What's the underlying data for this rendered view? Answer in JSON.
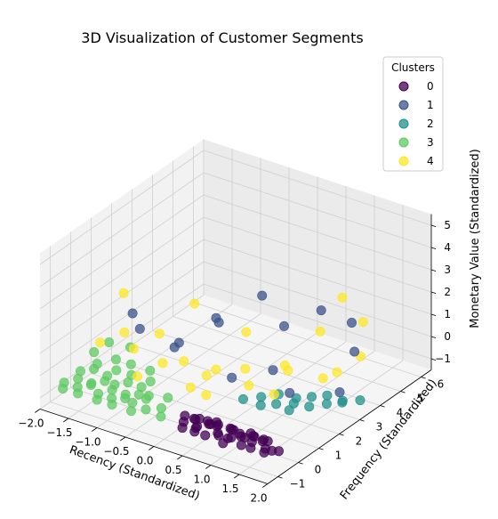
{
  "chart_data": {
    "type": "scatter",
    "title": "3D Visualization of Customer Segments",
    "xlabel": "Recency (Standardized)",
    "ylabel": "Frequency (Standardized)",
    "zlabel": "Monetary Value (Standardized)",
    "x_ticks": [
      "−2.0",
      "−1.5",
      "−1.0",
      "−0.5",
      "0.0",
      "0.5",
      "1.0",
      "1.5",
      "2.0"
    ],
    "y_ticks": [
      "−1",
      "0",
      "1",
      "2",
      "3",
      "4",
      "5",
      "6"
    ],
    "z_ticks": [
      "−1",
      "0",
      "1",
      "2",
      "3",
      "4",
      "5"
    ],
    "xlim": [
      -2.0,
      2.0
    ],
    "ylim": [
      -1.5,
      6.5
    ],
    "zlim": [
      -1.5,
      5.5
    ],
    "grid": true,
    "legend": {
      "title": "Clusters",
      "placement": "top-right",
      "entries": [
        "0",
        "1",
        "2",
        "3",
        "4"
      ]
    },
    "series": [
      {
        "name": "0",
        "color": "#440154",
        "points": [
          [
            0.2,
            -0.6,
            -0.8
          ],
          [
            0.4,
            -0.5,
            -0.9
          ],
          [
            0.6,
            -0.4,
            -0.7
          ],
          [
            0.8,
            -0.6,
            -0.8
          ],
          [
            1.0,
            -0.5,
            -0.9
          ],
          [
            1.2,
            -0.4,
            -0.8
          ],
          [
            1.4,
            -0.6,
            -0.7
          ],
          [
            1.6,
            -0.5,
            -0.9
          ],
          [
            0.3,
            -0.3,
            -0.8
          ],
          [
            0.5,
            -0.2,
            -0.9
          ],
          [
            0.7,
            -0.3,
            -0.7
          ],
          [
            0.9,
            -0.2,
            -0.8
          ],
          [
            1.1,
            -0.3,
            -0.9
          ],
          [
            1.3,
            -0.2,
            -0.8
          ],
          [
            1.5,
            -0.3,
            -0.7
          ],
          [
            0.25,
            -0.8,
            -0.9
          ],
          [
            0.45,
            -0.7,
            -0.8
          ],
          [
            0.65,
            -0.8,
            -0.9
          ],
          [
            0.85,
            -0.7,
            -0.8
          ],
          [
            1.05,
            -0.8,
            -0.7
          ],
          [
            1.25,
            -0.7,
            -0.9
          ],
          [
            1.45,
            -0.8,
            -0.8
          ],
          [
            1.65,
            -0.7,
            -0.9
          ],
          [
            0.35,
            -0.5,
            -0.6
          ],
          [
            0.55,
            -0.4,
            -0.6
          ],
          [
            0.75,
            -0.5,
            -0.6
          ],
          [
            0.95,
            -0.4,
            -0.6
          ],
          [
            1.15,
            -0.5,
            -0.6
          ],
          [
            1.35,
            -0.4,
            -0.6
          ],
          [
            1.55,
            -0.5,
            -0.6
          ],
          [
            0.3,
            -0.1,
            -0.9
          ],
          [
            0.6,
            -0.1,
            -0.8
          ],
          [
            0.9,
            -0.1,
            -0.9
          ],
          [
            1.2,
            -0.1,
            -0.8
          ],
          [
            1.5,
            -0.1,
            -0.9
          ],
          [
            0.15,
            -0.4,
            -0.7
          ],
          [
            1.75,
            -0.6,
            -0.8
          ],
          [
            1.8,
            -0.4,
            -0.9
          ],
          [
            0.5,
            -0.9,
            -0.8
          ],
          [
            1.0,
            -0.9,
            -0.9
          ]
        ]
      },
      {
        "name": "1",
        "color": "#3b528b",
        "points": [
          [
            -1.0,
            0.6,
            1.6
          ],
          [
            -0.5,
            0.9,
            1.0
          ],
          [
            0.1,
            1.4,
            2.3
          ],
          [
            0.5,
            2.4,
            3.2
          ],
          [
            1.0,
            3.9,
            2.0
          ],
          [
            1.8,
            3.3,
            1.2
          ],
          [
            1.9,
            2.3,
            0.1
          ],
          [
            -0.2,
            2.1,
            1.8
          ],
          [
            0.4,
            1.2,
            0.2
          ],
          [
            -1.2,
            0.8,
            2.0
          ],
          [
            0.6,
            3.2,
            1.4
          ],
          [
            1.5,
            4.0,
            1.8
          ],
          [
            -0.6,
            1.4,
            0.8
          ],
          [
            0.8,
            2.1,
            0.3
          ],
          [
            1.2,
            1.8,
            -0.2
          ]
        ]
      },
      {
        "name": "2",
        "color": "#21918c",
        "points": [
          [
            0.7,
            1.8,
            -0.8
          ],
          [
            0.9,
            2.1,
            -0.7
          ],
          [
            1.1,
            2.4,
            -0.9
          ],
          [
            1.3,
            2.6,
            -0.8
          ],
          [
            1.5,
            2.8,
            -0.7
          ],
          [
            1.7,
            3.0,
            -0.9
          ],
          [
            0.8,
            1.5,
            -0.9
          ],
          [
            1.0,
            1.7,
            -0.8
          ],
          [
            1.2,
            2.0,
            -0.8
          ],
          [
            1.4,
            2.2,
            -0.9
          ],
          [
            1.6,
            2.5,
            -0.8
          ],
          [
            1.8,
            2.7,
            -0.7
          ],
          [
            0.6,
            1.2,
            -0.6
          ],
          [
            1.9,
            3.3,
            -0.9
          ],
          [
            1.3,
            1.5,
            -0.7
          ]
        ]
      },
      {
        "name": "3",
        "color": "#5ec962",
        "points": [
          [
            -1.9,
            -0.6,
            -0.8
          ],
          [
            -1.7,
            -0.5,
            -0.9
          ],
          [
            -1.5,
            -0.4,
            -0.7
          ],
          [
            -1.3,
            -0.6,
            -0.8
          ],
          [
            -1.1,
            -0.5,
            -0.9
          ],
          [
            -0.9,
            -0.4,
            -0.8
          ],
          [
            -0.7,
            -0.6,
            -0.7
          ],
          [
            -0.5,
            -0.5,
            -0.9
          ],
          [
            -1.8,
            -0.2,
            -0.8
          ],
          [
            -1.6,
            -0.1,
            -0.9
          ],
          [
            -1.4,
            0.0,
            -0.7
          ],
          [
            -1.2,
            -0.2,
            -0.8
          ],
          [
            -1.0,
            -0.1,
            -0.9
          ],
          [
            -0.8,
            0.0,
            -0.8
          ],
          [
            -0.6,
            -0.2,
            -0.7
          ],
          [
            -1.9,
            0.2,
            -0.8
          ],
          [
            -1.7,
            0.3,
            -0.6
          ],
          [
            -1.5,
            0.4,
            -0.8
          ],
          [
            -1.3,
            0.2,
            -0.9
          ],
          [
            -1.1,
            0.3,
            -0.7
          ],
          [
            -0.9,
            0.4,
            -0.8
          ],
          [
            -0.7,
            0.2,
            -0.9
          ],
          [
            -0.4,
            0.3,
            -0.8
          ],
          [
            -1.85,
            -0.8,
            -0.9
          ],
          [
            -1.55,
            -0.9,
            -0.8
          ],
          [
            -1.25,
            -0.8,
            -0.9
          ],
          [
            -0.95,
            -0.9,
            -0.8
          ],
          [
            -0.65,
            -0.8,
            -0.9
          ],
          [
            -1.75,
            0.6,
            -0.6
          ],
          [
            -1.45,
            0.7,
            -0.7
          ],
          [
            -1.15,
            0.6,
            -0.6
          ],
          [
            -0.85,
            0.7,
            -0.7
          ],
          [
            -1.95,
            1.0,
            -0.5
          ],
          [
            -1.6,
            1.1,
            -0.6
          ],
          [
            -1.3,
            1.0,
            -0.5
          ],
          [
            -1.0,
            1.1,
            -0.6
          ],
          [
            -0.3,
            -0.3,
            -0.8
          ],
          [
            -0.2,
            -0.6,
            -0.9
          ],
          [
            -1.9,
            1.6,
            -0.4
          ],
          [
            -1.6,
            1.8,
            -0.5
          ]
        ]
      },
      {
        "name": "4",
        "color": "#fde725",
        "points": [
          [
            -1.5,
            1.2,
            2.4
          ],
          [
            -1.7,
            0.6,
            0.4
          ],
          [
            -1.0,
            0.3,
            0.9
          ],
          [
            -0.8,
            1.0,
            1.3
          ],
          [
            -0.3,
            0.8,
            0.6
          ],
          [
            0.1,
            0.8,
            0.3
          ],
          [
            0.4,
            1.9,
            1.8
          ],
          [
            0.9,
            2.4,
            0.4
          ],
          [
            1.2,
            3.3,
            1.6
          ],
          [
            1.5,
            2.6,
            0.2
          ],
          [
            1.0,
            1.6,
            -0.3
          ],
          [
            0.2,
            0.5,
            -0.3
          ],
          [
            -0.4,
            1.6,
            2.6
          ],
          [
            0.6,
            1.3,
            0.7
          ],
          [
            1.3,
            4.1,
            2.7
          ],
          [
            1.7,
            4.0,
            2.0
          ],
          [
            -0.9,
            0.2,
            -0.2
          ],
          [
            0.0,
            0.3,
            0.0
          ],
          [
            1.1,
            2.0,
            0.6
          ],
          [
            1.8,
            3.6,
            0.8
          ],
          [
            -1.2,
            0.4,
            1.4
          ],
          [
            0.3,
            0.7,
            0.8
          ],
          [
            0.7,
            1.2,
            0.1
          ],
          [
            -0.6,
            0.6,
            0.4
          ],
          [
            1.6,
            3.0,
            0.3
          ]
        ]
      }
    ]
  }
}
